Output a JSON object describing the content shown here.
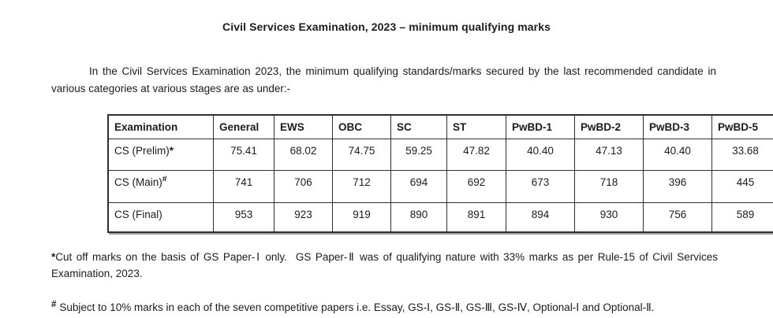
{
  "page": {
    "title": "Civil Services Examination, 2023 – minimum qualifying marks",
    "intro": "In the Civil Services Examination 2023, the minimum qualifying standards/marks secured by the last recommended candidate in various categories at various stages are as under:-"
  },
  "table": {
    "columns": [
      "Examination",
      "General",
      "EWS",
      "OBC",
      "SC",
      "ST",
      "PwBD-1",
      "PwBD-2",
      "PwBD-3",
      "PwBD-5"
    ],
    "rows": [
      {
        "label": "CS (Prelim)",
        "marker": "*",
        "marker_style": "inline",
        "values": [
          "75.41",
          "68.02",
          "74.75",
          "59.25",
          "47.82",
          "40.40",
          "47.13",
          "40.40",
          "33.68"
        ]
      },
      {
        "label": "CS (Main)",
        "marker": "#",
        "marker_style": "superscript",
        "values": [
          "741",
          "706",
          "712",
          "694",
          "692",
          "673",
          "718",
          "396",
          "445"
        ]
      },
      {
        "label": "CS (Final)",
        "marker": "",
        "marker_style": "none",
        "values": [
          "953",
          "923",
          "919",
          "890",
          "891",
          "894",
          "930",
          "756",
          "589"
        ]
      }
    ]
  },
  "footnotes": [
    {
      "marker": "*",
      "text": "Cut off marks on the basis of GS Paper-Ⅰ only.  GS Paper-Ⅱ was of qualifying nature with 33% marks as per Rule-15 of Civil Services Examination, 2023."
    },
    {
      "marker": "#",
      "text": "Subject to 10% marks in each of the seven competitive papers i.e. Essay, GS-Ⅰ, GS-Ⅱ, GS-Ⅲ, GS-Ⅳ, Optional-Ⅰ and Optional-Ⅱ."
    }
  ]
}
